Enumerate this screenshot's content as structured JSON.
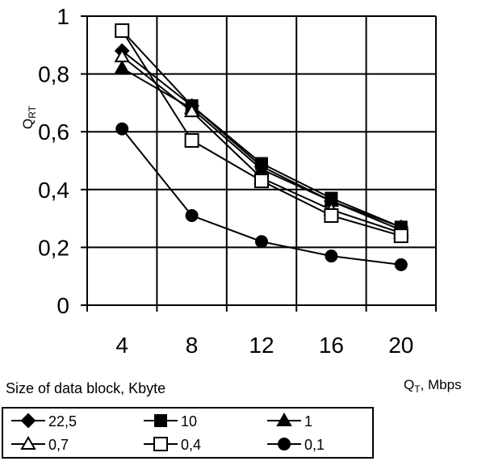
{
  "chart_data": {
    "type": "line",
    "xlabel": "Q",
    "xlabel_sub": "T",
    "xlabel_unit": ", Mbps",
    "ylabel": "Q",
    "ylabel_sub": "RT",
    "x": [
      4,
      8,
      12,
      16,
      20
    ],
    "x_tick_labels": [
      "4",
      "8",
      "12",
      "16",
      "20"
    ],
    "ylim": [
      0,
      1
    ],
    "y_ticks": [
      0,
      0.2,
      0.4,
      0.6,
      0.8,
      1
    ],
    "y_tick_labels": [
      "0",
      "0,2",
      "0,4",
      "0,6",
      "0,8",
      "1"
    ],
    "grid": true,
    "legend_title": "Size of data block, Kbyte",
    "legend_position": "bottom",
    "series": [
      {
        "name": "22,5",
        "marker": "diamond-filled",
        "values": [
          0.88,
          0.69,
          0.48,
          0.36,
          0.27
        ]
      },
      {
        "name": "10",
        "marker": "square-filled",
        "values": [
          0.95,
          0.69,
          0.49,
          0.37,
          0.27
        ]
      },
      {
        "name": "1",
        "marker": "triangle-filled",
        "values": [
          0.82,
          0.68,
          0.47,
          0.36,
          0.26
        ]
      },
      {
        "name": "0,7",
        "marker": "triangle-open",
        "values": [
          0.86,
          0.67,
          0.44,
          0.33,
          0.25
        ]
      },
      {
        "name": "0,4",
        "marker": "square-open",
        "values": [
          0.95,
          0.57,
          0.43,
          0.31,
          0.24
        ]
      },
      {
        "name": "0,1",
        "marker": "circle-filled",
        "values": [
          0.61,
          0.31,
          0.22,
          0.17,
          0.14
        ]
      }
    ]
  }
}
